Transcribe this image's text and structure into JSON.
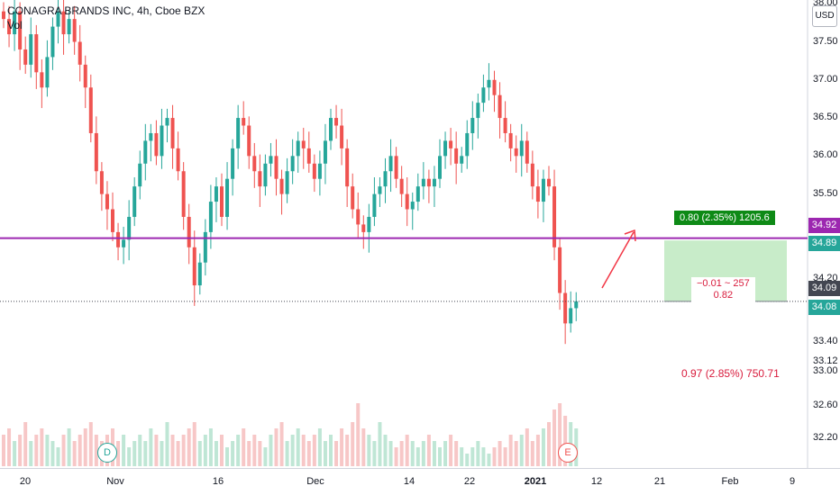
{
  "legend": {
    "title": "CONAGRA BRANDS INC, 4h, Cboe BZX",
    "volume_label": "Vol"
  },
  "currency": "USD",
  "colors": {
    "up": "#26a69a",
    "down": "#ef5350",
    "up_vol": "#bfe6d5",
    "down_vol": "#f7c7c7",
    "level_line": "#9c27b0",
    "long_box": "#c8ecc9",
    "arrow": "#f23645",
    "tag_dark": "#434651",
    "tag_green": "#26a69a",
    "tag_purple": "#9c27b0"
  },
  "price_axis": {
    "ticks": [
      "38.00",
      "37.50",
      "37.00",
      "36.50",
      "36.00",
      "35.50",
      "34.20",
      "33.40",
      "33.12",
      "33.00",
      "32.60",
      "32.20"
    ],
    "tags": [
      {
        "label": "34.92",
        "value": 34.92,
        "kind": "purple"
      },
      {
        "label": "34.89",
        "value": 34.89,
        "kind": "green"
      },
      {
        "label": "34.09",
        "value": 34.09,
        "kind": "dark"
      },
      {
        "label": "34.08",
        "value": 34.08,
        "kind": "green"
      }
    ]
  },
  "time_axis": [
    "20",
    "Nov",
    "16",
    "Dec",
    "14",
    "22",
    "2021",
    "12",
    "21",
    "Feb",
    "9"
  ],
  "badges": [
    {
      "label": "D",
      "kind": "dividend"
    },
    {
      "label": "E",
      "kind": "earnings"
    }
  ],
  "position_tool": {
    "target_label": "0.80 (2.35%) 1205.6",
    "pnl_line1": "−0.01 ~ 257",
    "pnl_line2": "0.82",
    "entry": 34.09,
    "target": 34.89
  },
  "bottom_stat": "0.97 (2.85%) 750.71",
  "chart_data": {
    "type": "candlestick",
    "title": "CONAGRA BRANDS INC, 4h, Cboe BZX",
    "ylim": [
      31.9,
      38.0
    ],
    "horizontal_line": 34.92,
    "candles_close_approx": [
      37.8,
      37.6,
      37.9,
      37.4,
      37.2,
      37.6,
      37.1,
      36.9,
      37.3,
      37.7,
      37.9,
      37.6,
      37.8,
      37.5,
      37.2,
      36.9,
      36.3,
      35.8,
      35.5,
      35.3,
      35.0,
      34.8,
      34.9,
      35.2,
      35.6,
      35.9,
      36.2,
      36.3,
      36.0,
      36.4,
      36.5,
      36.1,
      35.8,
      35.2,
      34.8,
      34.3,
      34.6,
      35.0,
      35.4,
      35.6,
      35.2,
      35.7,
      36.1,
      36.5,
      36.4,
      36.0,
      35.8,
      35.6,
      35.9,
      36.0,
      35.7,
      35.5,
      35.8,
      36.0,
      36.2,
      36.1,
      35.9,
      35.7,
      35.9,
      36.2,
      36.5,
      36.4,
      36.1,
      35.6,
      35.3,
      35.1,
      35.0,
      35.2,
      35.5,
      35.6,
      35.8,
      36.0,
      35.7,
      35.5,
      35.3,
      35.4,
      35.6,
      35.7,
      35.6,
      35.7,
      36.0,
      36.2,
      36.1,
      35.9,
      36.0,
      36.3,
      36.5,
      36.7,
      36.9,
      37.0,
      36.8,
      36.5,
      36.3,
      36.1,
      36.0,
      36.2,
      35.9,
      35.6,
      35.4,
      35.7,
      35.6,
      34.8,
      34.2,
      33.8,
      34.0,
      34.09
    ],
    "volume_relative": [
      0.5,
      0.6,
      0.4,
      0.5,
      0.7,
      0.4,
      0.5,
      0.6,
      0.5,
      0.4,
      0.3,
      0.5,
      0.6,
      0.4,
      0.5,
      0.6,
      0.7,
      0.5,
      0.4,
      0.5,
      0.6,
      0.4,
      0.5,
      0.3,
      0.4,
      0.5,
      0.4,
      0.6,
      0.5,
      0.4,
      0.7,
      0.5,
      0.4,
      0.5,
      0.6,
      0.7,
      0.4,
      0.5,
      0.6,
      0.4,
      0.5,
      0.3,
      0.4,
      0.5,
      0.6,
      0.4,
      0.5,
      0.4,
      0.3,
      0.5,
      0.6,
      0.7,
      0.4,
      0.5,
      0.6,
      0.5,
      0.4,
      0.5,
      0.6,
      0.4,
      0.5,
      0.4,
      0.6,
      0.5,
      0.7,
      1.0,
      0.6,
      0.5,
      0.4,
      0.7,
      0.5,
      0.4,
      0.3,
      0.4,
      0.5,
      0.4,
      0.3,
      0.4,
      0.5,
      0.4,
      0.3,
      0.4,
      0.5,
      0.4,
      0.3,
      0.2,
      0.3,
      0.4,
      0.3,
      0.2,
      0.3,
      0.4,
      0.3,
      0.5,
      0.4,
      0.5,
      0.6,
      0.4,
      0.5,
      0.6,
      0.7,
      0.9,
      1.0,
      0.8,
      0.7,
      0.6
    ]
  }
}
